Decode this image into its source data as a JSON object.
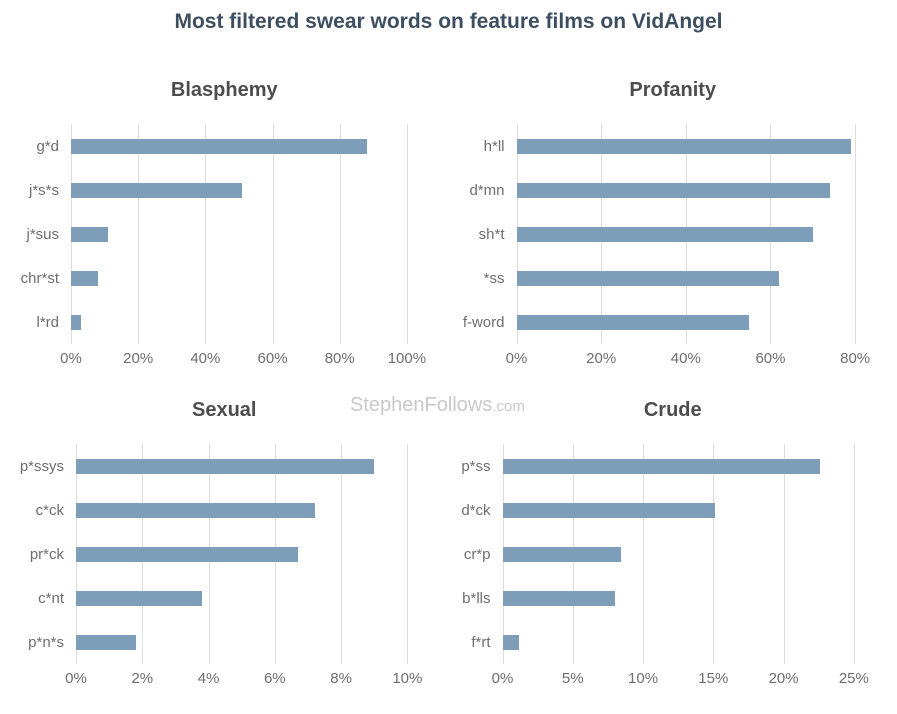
{
  "page": {
    "title": "Most filtered swear words on feature films on VidAngel",
    "watermark": "StephenFollows",
    "watermark_suffix": ".com"
  },
  "colors": {
    "bar": "#7d9db9",
    "main_title": "#3d4e61",
    "chart_title": "#4d4d4d",
    "axis_text": "#6e6e6e",
    "gridline": "#dddddd",
    "watermark": "#c9c9c9"
  },
  "chart_data": [
    {
      "type": "bar",
      "orientation": "horizontal",
      "title": "Blasphemy",
      "categories": [
        "g*d",
        "j*s*s",
        "j*sus",
        "chr*st",
        "l*rd"
      ],
      "values": [
        88,
        51,
        11,
        8,
        3
      ],
      "unit": "%",
      "xlim": [
        0,
        110
      ],
      "ticks": [
        0,
        20,
        40,
        60,
        80,
        100
      ],
      "tick_labels": [
        "0%",
        "20%",
        "40%",
        "60%",
        "80%",
        "100%"
      ],
      "grid": true,
      "legend": "none"
    },
    {
      "type": "bar",
      "orientation": "horizontal",
      "title": "Profanity",
      "categories": [
        "h*ll",
        "d*mn",
        "sh*t",
        "*ss",
        "f-word"
      ],
      "values": [
        79,
        74,
        70,
        62,
        55
      ],
      "unit": "%",
      "xlim": [
        0,
        88
      ],
      "ticks": [
        0,
        20,
        40,
        60,
        80
      ],
      "tick_labels": [
        "0%",
        "20%",
        "40%",
        "60%",
        "80%"
      ],
      "grid": true,
      "legend": "none"
    },
    {
      "type": "bar",
      "orientation": "horizontal",
      "title": "Sexual",
      "categories": [
        "p*ssys",
        "c*ck",
        "pr*ck",
        "c*nt",
        "p*n*s"
      ],
      "values": [
        9.0,
        7.2,
        6.7,
        3.8,
        1.8
      ],
      "unit": "%",
      "xlim": [
        0,
        11
      ],
      "ticks": [
        0,
        2,
        4,
        6,
        8,
        10
      ],
      "tick_labels": [
        "0%",
        "2%",
        "4%",
        "6%",
        "8%",
        "10%"
      ],
      "grid": true,
      "legend": "none"
    },
    {
      "type": "bar",
      "orientation": "horizontal",
      "title": "Crude",
      "categories": [
        "p*ss",
        "d*ck",
        "cr*p",
        "b*lls",
        "f*rt"
      ],
      "values": [
        22.6,
        15.1,
        8.4,
        8.0,
        1.2
      ],
      "unit": "%",
      "xlim": [
        0,
        27.5
      ],
      "ticks": [
        0,
        5,
        10,
        15,
        20,
        25
      ],
      "tick_labels": [
        "0%",
        "5%",
        "10%",
        "15%",
        "20%",
        "25%"
      ],
      "grid": true,
      "legend": "none"
    }
  ]
}
